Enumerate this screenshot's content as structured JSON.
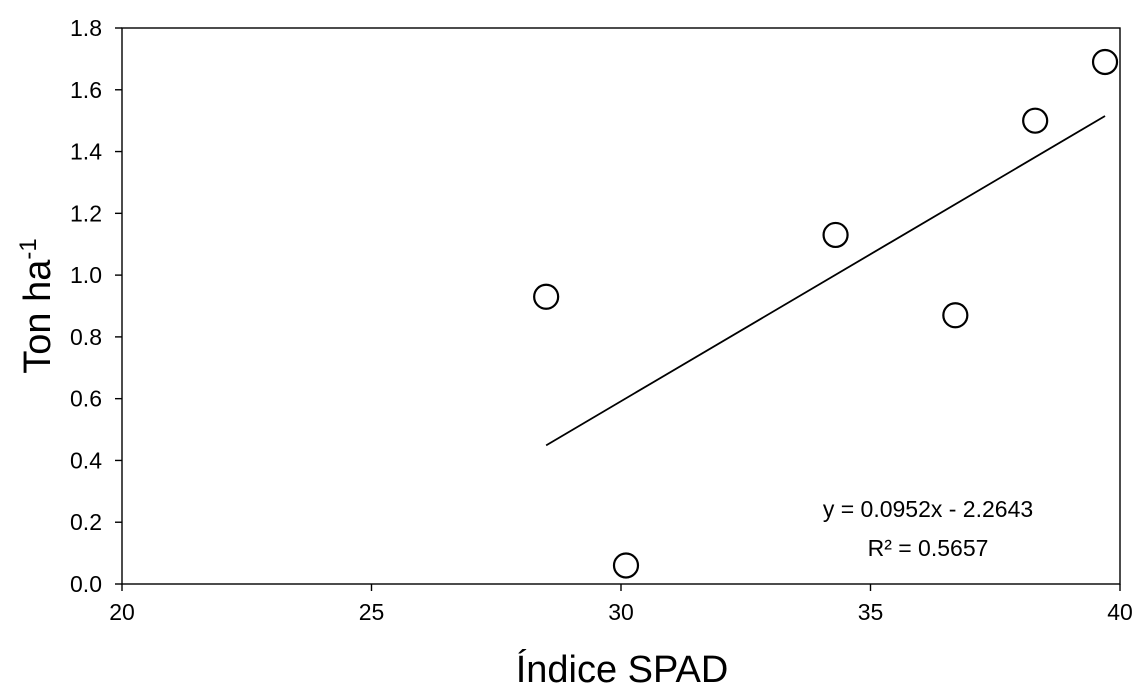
{
  "chart_data": {
    "type": "scatter",
    "title": "",
    "xlabel": "Índice SPAD",
    "ylabel": "Ton ha",
    "ylabel_superscript": "-1",
    "xlim": [
      20,
      40
    ],
    "ylim": [
      0.0,
      1.8
    ],
    "x_ticks": [
      "20",
      "25",
      "30",
      "35",
      "40"
    ],
    "y_ticks": [
      "0.0",
      "0.2",
      "0.4",
      "0.6",
      "0.8",
      "1.0",
      "1.2",
      "1.4",
      "1.6",
      "1.8"
    ],
    "grid": false,
    "legend": "none",
    "series": [
      {
        "points": [
          {
            "x": 28.5,
            "y": 0.93
          },
          {
            "x": 30.1,
            "y": 0.06
          },
          {
            "x": 34.3,
            "y": 1.13
          },
          {
            "x": 36.7,
            "y": 0.87
          },
          {
            "x": 38.3,
            "y": 1.5
          },
          {
            "x": 39.7,
            "y": 1.69
          }
        ]
      }
    ],
    "trendline": {
      "type": "linear",
      "slope": 0.0952,
      "intercept": -2.2643,
      "x_range": [
        28.5,
        39.7
      ],
      "equation_label": "y = 0.0952x - 2.2643",
      "r2_label": "R² = 0.5657"
    },
    "colors": {
      "marker_fill": "#ffffff",
      "marker_stroke": "#000000",
      "line": "#000000"
    }
  }
}
